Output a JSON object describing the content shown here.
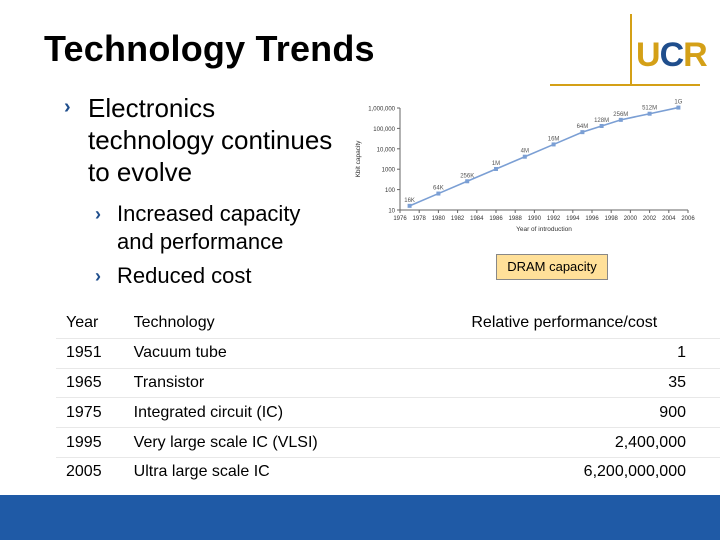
{
  "slide": {
    "title": "Technology Trends",
    "logo": {
      "u": "U",
      "c": "C",
      "r": "R"
    },
    "bullet_main": "Electronics technology continues to evolve",
    "sub_bullets": [
      "Increased capacity and performance",
      "Reduced cost"
    ],
    "caption": "DRAM capacity"
  },
  "table": {
    "headers": [
      "Year",
      "Technology",
      "Relative performance/cost"
    ],
    "rows": [
      [
        "1951",
        "Vacuum tube",
        "1"
      ],
      [
        "1965",
        "Transistor",
        "35"
      ],
      [
        "1975",
        "Integrated circuit (IC)",
        "900"
      ],
      [
        "1995",
        "Very large scale IC (VLSI)",
        "2,400,000"
      ],
      [
        "2005",
        "Ultra large scale IC",
        "6,200,000,000"
      ]
    ]
  },
  "chart_data": {
    "type": "line",
    "xlabel": "Year of introduction",
    "ylabel": "Kbit capacity",
    "y_scale": "log",
    "ylim": [
      10,
      1000000
    ],
    "xlim": [
      1976,
      2006
    ],
    "x_ticks": [
      "1976",
      "1978",
      "1980",
      "1982",
      "1984",
      "1986",
      "1988",
      "1990",
      "1992",
      "1994",
      "1996",
      "1998",
      "2000",
      "2002",
      "2004",
      "2006"
    ],
    "y_ticks": [
      "10",
      "100",
      "1000",
      "10,000",
      "100,000",
      "1,000,000"
    ],
    "x": [
      1977,
      1980,
      1983,
      1986,
      1989,
      1992,
      1995,
      1997,
      1999,
      2002,
      2005
    ],
    "values": [
      16,
      64,
      256,
      1024,
      4096,
      16384,
      65536,
      131072,
      262144,
      524288,
      1048576
    ],
    "labels": [
      "16K",
      "64K",
      "256K",
      "1M",
      "4M",
      "16M",
      "64M",
      "128M",
      "256M",
      "512M",
      "1G"
    ],
    "color": "#7b9fd4"
  }
}
